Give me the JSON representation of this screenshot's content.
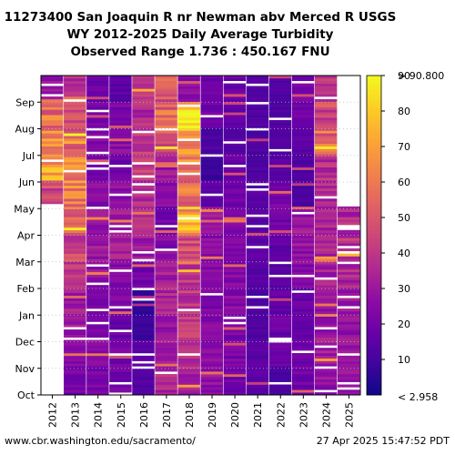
{
  "title_lines": [
    "11273400 San Joaquin R nr Newman abv Merced R USGS",
    "WY 2012-2025 Daily Average Turbidity",
    "Observed Range 1.736 : 450.167 FNU"
  ],
  "footer": {
    "source": "www.cbr.washington.edu/sacramento/",
    "timestamp": "27 Apr 2025 15:47:52 PDT"
  },
  "chart_data": {
    "type": "heatmap",
    "x_categories": [
      "2012",
      "2013",
      "2014",
      "2015",
      "2016",
      "2017",
      "2018",
      "2019",
      "2020",
      "2021",
      "2022",
      "2023",
      "2024",
      "2025"
    ],
    "y_month_labels": [
      "Oct",
      "Nov",
      "Dec",
      "Jan",
      "Feb",
      "Mar",
      "Apr",
      "May",
      "Jun",
      "Jul",
      "Aug",
      "Sep"
    ],
    "colorbar": {
      "min": 0,
      "max": 90,
      "ticks": [
        10,
        20,
        30,
        40,
        50,
        60,
        70,
        80,
        90
      ],
      "low_label": "< 2.958",
      "high_label": "> 90.800",
      "colormap": "plasma"
    },
    "observed_range": [
      1.736,
      450.167
    ],
    "units": "FNU",
    "monthly_turbidity_estimates": {
      "2012": [
        null,
        null,
        null,
        null,
        null,
        null,
        null,
        45,
        68,
        62,
        58,
        30
      ],
      "2013": [
        20,
        25,
        30,
        32,
        38,
        45,
        55,
        60,
        65,
        55,
        45,
        35
      ],
      "2014": [
        22,
        24,
        20,
        22,
        28,
        30,
        30,
        25,
        18,
        25,
        20,
        18
      ],
      "2015": [
        20,
        20,
        18,
        22,
        25,
        32,
        30,
        28,
        20,
        25,
        22,
        15
      ],
      "2016": [
        12,
        15,
        8,
        6,
        20,
        30,
        35,
        35,
        45,
        40,
        35,
        45
      ],
      "2017": [
        35,
        30,
        28,
        35,
        32,
        25,
        20,
        25,
        30,
        50,
        55,
        50
      ],
      "2018": [
        35,
        38,
        40,
        40,
        40,
        48,
        70,
        55,
        60,
        70,
        78,
        25
      ],
      "2019": [
        28,
        25,
        25,
        22,
        25,
        25,
        30,
        15,
        8,
        12,
        20,
        18
      ],
      "2020": [
        20,
        22,
        22,
        25,
        24,
        22,
        25,
        20,
        18,
        15,
        15,
        18
      ],
      "2021": [
        15,
        15,
        12,
        12,
        14,
        15,
        15,
        14,
        12,
        12,
        12,
        12
      ],
      "2022": [
        12,
        18,
        18,
        16,
        14,
        15,
        20,
        22,
        14,
        12,
        12,
        12
      ],
      "2023": [
        20,
        20,
        18,
        18,
        25,
        28,
        30,
        12,
        12,
        15,
        18,
        22
      ],
      "2024": [
        28,
        32,
        30,
        30,
        32,
        35,
        35,
        35,
        38,
        55,
        45,
        40
      ],
      "2025": [
        28,
        30,
        28,
        28,
        35,
        38,
        35,
        null,
        null,
        null,
        null,
        null
      ]
    }
  }
}
